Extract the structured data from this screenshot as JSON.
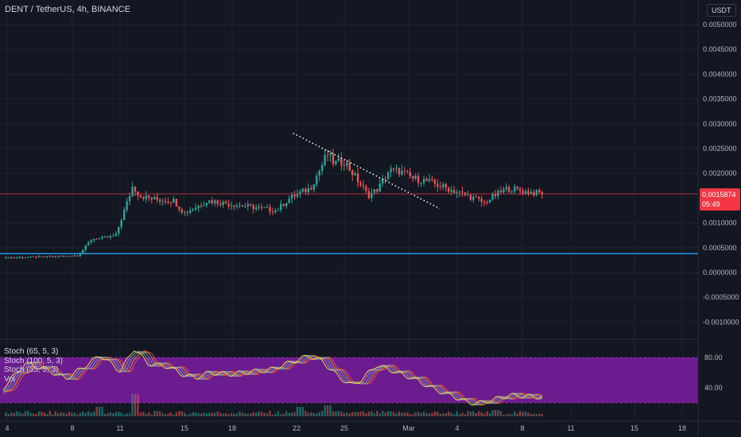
{
  "header": {
    "symbol": "DENT / TetherUS, 4h, BINANCE",
    "currency": "USDT"
  },
  "price_tag": {
    "price": "0.0015874",
    "countdown": "05:49"
  },
  "indicators": [
    "Stoch (65, 5, 3)",
    "Stoch (100, 5, 3)",
    "Stoch (35, 5, 3)",
    "Vol"
  ],
  "colors": {
    "background": "#131722",
    "up": "#26a69a",
    "down": "#ef5350",
    "support_line": "#2196f3",
    "stoch_band": "#7b1fa2",
    "price_line": "#f23645"
  },
  "chart_data": [
    {
      "type": "candlestick",
      "title": "",
      "xlabel": "",
      "ylabel": "",
      "x_ticks": [
        "4",
        "8",
        "11",
        "15",
        "18",
        "22",
        "25",
        "Mar",
        "4",
        "8",
        "11",
        "15",
        "18"
      ],
      "y_ticks": [
        "0.0050000",
        "0.0045000",
        "0.0040000",
        "0.0035000",
        "0.0030000",
        "0.0025000",
        "0.0020000",
        "0.0010000",
        "0.0005000",
        "0.0000000",
        "-0.0005000",
        "-0.0010000"
      ],
      "ylim": [
        -0.0012,
        0.0051
      ],
      "grid": true,
      "last_price": 0.0015874,
      "support_level": 0.00038,
      "trendline": {
        "from": [
          0.0,
          0.00281
        ],
        "to": [
          0.485,
          0.00129
        ]
      },
      "series_knots": [
        [
          0.0,
          0.0003
        ],
        [
          0.09,
          0.00033
        ],
        [
          0.11,
          0.00035
        ],
        [
          0.13,
          0.00068
        ],
        [
          0.15,
          0.0007
        ],
        [
          0.165,
          0.00075
        ],
        [
          0.19,
          0.00175
        ],
        [
          0.2,
          0.00155
        ],
        [
          0.22,
          0.00148
        ],
        [
          0.25,
          0.00145
        ],
        [
          0.265,
          0.0012
        ],
        [
          0.28,
          0.0013
        ],
        [
          0.3,
          0.00145
        ],
        [
          0.35,
          0.00135
        ],
        [
          0.4,
          0.00125
        ],
        [
          0.42,
          0.0015
        ],
        [
          0.45,
          0.0017
        ],
        [
          0.465,
          0.0021
        ],
        [
          0.475,
          0.0024
        ],
        [
          0.485,
          0.0022
        ],
        [
          0.5,
          0.00225
        ],
        [
          0.52,
          0.00185
        ],
        [
          0.535,
          0.00155
        ],
        [
          0.55,
          0.0017
        ],
        [
          0.565,
          0.00205
        ],
        [
          0.58,
          0.00205
        ],
        [
          0.6,
          0.0019
        ],
        [
          0.62,
          0.00185
        ],
        [
          0.64,
          0.00175
        ],
        [
          0.67,
          0.0016
        ],
        [
          0.69,
          0.0015
        ],
        [
          0.705,
          0.0014
        ],
        [
          0.72,
          0.00155
        ],
        [
          0.74,
          0.0017
        ],
        [
          0.77,
          0.00162
        ],
        [
          0.79,
          0.0016
        ]
      ]
    },
    {
      "type": "line",
      "title": "",
      "series": [
        "Stoch (65, 5, 3)",
        "Stoch (100, 5, 3)",
        "Stoch (35, 5, 3)"
      ],
      "ylim": [
        0,
        100
      ],
      "y_ticks": [
        "80.00",
        "40.00"
      ],
      "band": [
        20,
        80
      ],
      "stoch_knots": [
        [
          0.0,
          32
        ],
        [
          0.04,
          72
        ],
        [
          0.07,
          65
        ],
        [
          0.1,
          52
        ],
        [
          0.13,
          70
        ],
        [
          0.15,
          83
        ],
        [
          0.18,
          62
        ],
        [
          0.2,
          92
        ],
        [
          0.22,
          72
        ],
        [
          0.25,
          68
        ],
        [
          0.27,
          58
        ],
        [
          0.29,
          53
        ],
        [
          0.31,
          60
        ],
        [
          0.34,
          58
        ],
        [
          0.37,
          61
        ],
        [
          0.4,
          64
        ],
        [
          0.43,
          74
        ],
        [
          0.455,
          82
        ],
        [
          0.475,
          76
        ],
        [
          0.5,
          54
        ],
        [
          0.52,
          43
        ],
        [
          0.535,
          52
        ],
        [
          0.555,
          70
        ],
        [
          0.58,
          62
        ],
        [
          0.61,
          52
        ],
        [
          0.64,
          38
        ],
        [
          0.67,
          28
        ],
        [
          0.69,
          20
        ],
        [
          0.71,
          20
        ],
        [
          0.73,
          25
        ],
        [
          0.75,
          30
        ],
        [
          0.79,
          28
        ]
      ]
    },
    {
      "type": "bar",
      "title": "Vol",
      "spikes": [
        [
          0.14,
          12
        ],
        [
          0.195,
          28
        ],
        [
          0.475,
          14
        ],
        [
          0.435,
          12
        ],
        [
          0.72,
          8
        ]
      ]
    }
  ]
}
